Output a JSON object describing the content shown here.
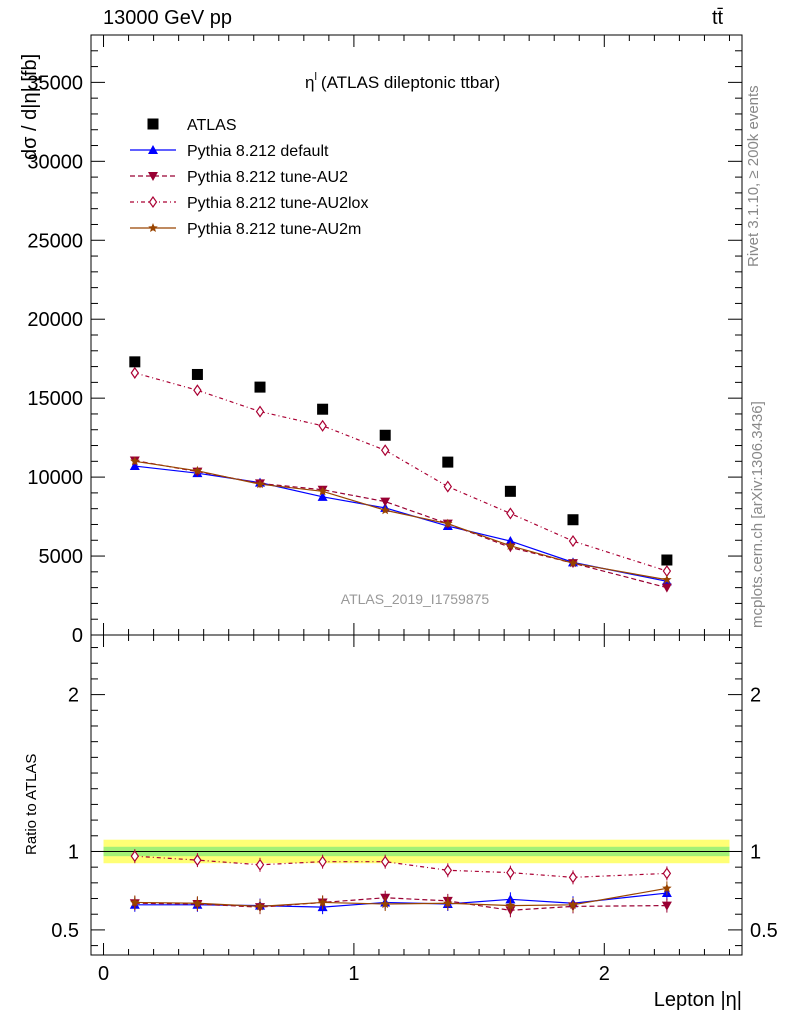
{
  "header": {
    "left": "13000 GeV pp",
    "right": "tt̄"
  },
  "side_labels": {
    "rivet": "Rivet 3.1.10, ≥ 200k events",
    "mcplots": "mcplots.cern.ch [arXiv:1306.3436]"
  },
  "chart_data": {
    "type": "line",
    "title": "η",
    "title_superscript": "l",
    "title_suffix": "(ATLAS dileptonic ttbar)",
    "watermark": "ATLAS_2019_I1759875",
    "xlabel": "Lepton |η|",
    "ylabel": "dσ / d|η| [fb]",
    "ratio_ylabel": "Ratio to ATLAS",
    "xlim": [
      -0.05,
      2.55
    ],
    "ylim": [
      0,
      38000
    ],
    "ratio_ylim": [
      0.34,
      2.38
    ],
    "x_ticks": [
      0,
      1,
      2
    ],
    "x_tick_labels": [
      "0",
      "1",
      "2"
    ],
    "y_ticks": [
      0,
      5000,
      10000,
      15000,
      20000,
      25000,
      30000,
      35000
    ],
    "y_tick_labels": [
      "0",
      "5000",
      "10000",
      "15000",
      "20000",
      "25000",
      "30000",
      "35000"
    ],
    "ratio_y_ticks": [
      0.5,
      1,
      2
    ],
    "ratio_y_tick_labels": [
      "0.5",
      "1",
      "2"
    ],
    "x": [
      0.125,
      0.375,
      0.625,
      0.875,
      1.125,
      1.375,
      1.625,
      1.875,
      2.25
    ],
    "reference": {
      "name": "ATLAS",
      "values": [
        17300,
        16500,
        15700,
        14300,
        12650,
        10950,
        9100,
        7300,
        4750
      ],
      "color": "#000000"
    },
    "series": [
      {
        "name": "Pythia 8.212 default",
        "values": [
          10700,
          10250,
          9650,
          8750,
          8050,
          6900,
          5950,
          4600,
          3400
        ],
        "ratio": [
          0.66,
          0.66,
          0.655,
          0.645,
          0.675,
          0.665,
          0.695,
          0.67,
          0.735
        ],
        "color": "#0000ff",
        "dash": "",
        "marker": "triangle-up"
      },
      {
        "name": "Pythia 8.212 tune-AU2",
        "values": [
          11050,
          10350,
          9600,
          9200,
          8450,
          7050,
          5550,
          4550,
          3000
        ],
        "ratio": [
          0.67,
          0.665,
          0.645,
          0.675,
          0.705,
          0.685,
          0.625,
          0.65,
          0.655
        ],
        "color": "#990033",
        "dash": "5,3",
        "marker": "triangle-down"
      },
      {
        "name": "Pythia 8.212 tune-AU2lox",
        "values": [
          16600,
          15500,
          14150,
          13250,
          11700,
          9400,
          7700,
          5950,
          4050
        ],
        "ratio": [
          0.97,
          0.945,
          0.915,
          0.935,
          0.935,
          0.88,
          0.865,
          0.835,
          0.86
        ],
        "color": "#aa0033",
        "dash": "4,3,1,3",
        "marker": "diamond-open"
      },
      {
        "name": "Pythia 8.212 tune-AU2m",
        "values": [
          11000,
          10400,
          9550,
          9100,
          7900,
          7050,
          5650,
          4550,
          3500
        ],
        "ratio": [
          0.675,
          0.67,
          0.65,
          0.675,
          0.665,
          0.67,
          0.655,
          0.66,
          0.765
        ],
        "color": "#994400",
        "dash": "",
        "marker": "star"
      }
    ],
    "legend_position": "top-left"
  }
}
